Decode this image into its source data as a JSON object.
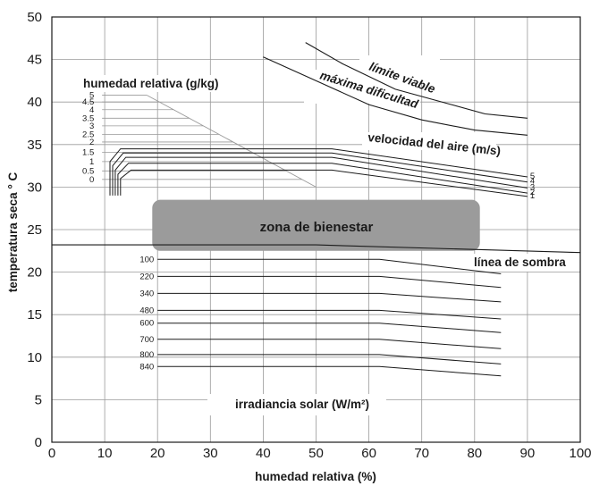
{
  "chart_data": {
    "type": "line",
    "title": "",
    "xlabel": "humedad relativa (%)",
    "ylabel": "temperatura seca ° C",
    "xlim": [
      0,
      100
    ],
    "ylim": [
      0,
      50
    ],
    "x_ticks": [
      "0",
      "10",
      "20",
      "30",
      "40",
      "50",
      "60",
      "70",
      "80",
      "90",
      "100"
    ],
    "y_ticks": [
      "0",
      "5",
      "10",
      "15",
      "20",
      "25",
      "30",
      "35",
      "40",
      "45",
      "50"
    ],
    "grid": true,
    "annotations": {
      "humedad": "humedad relativa (g/kg)",
      "limite": "límite viable",
      "maxima": "máxima dificultad",
      "velocidad": "velocidad del aire (m/s)",
      "zona": "zona de bienestar",
      "sombra": "línea de sombra",
      "irradiancia": "irradiancia solar (W/m²)"
    },
    "limit_curves": [
      {
        "name": "límite viable",
        "x": [
          48,
          55,
          65,
          75,
          82,
          90
        ],
        "y": [
          47,
          44.5,
          41.5,
          39.8,
          38.6,
          38.1
        ]
      },
      {
        "name": "máxima dificultad",
        "x": [
          40,
          50,
          60,
          70,
          80,
          90
        ],
        "y": [
          45.3,
          42.5,
          39.7,
          37.9,
          36.7,
          36.1
        ]
      }
    ],
    "humidity_lines": {
      "labels": [
        "5",
        "4.5",
        "4",
        "3.5",
        "3",
        "2.5",
        "2",
        "1.5",
        "1",
        "0.5",
        "0"
      ],
      "y": [
        40.8,
        40.0,
        39.1,
        38.1,
        37.2,
        36.2,
        35.3,
        34.1,
        33.0,
        31.9,
        30.9
      ]
    },
    "humidity_boundary": {
      "x": [
        18,
        50
      ],
      "y": [
        40.8,
        30
      ]
    },
    "air_velocity": [
      {
        "name": "5",
        "x": [
          11,
          13,
          53,
          90
        ],
        "y": [
          33,
          34.5,
          34.5,
          31.2
        ]
      },
      {
        "name": "4",
        "x": [
          11.5,
          13.5,
          53,
          90
        ],
        "y": [
          32.5,
          34,
          34,
          30.6
        ]
      },
      {
        "name": "3",
        "x": [
          12,
          14,
          53,
          90
        ],
        "y": [
          32,
          33.5,
          33.5,
          29.9
        ]
      },
      {
        "name": "2",
        "x": [
          12.5,
          14.5,
          53,
          90
        ],
        "y": [
          31.5,
          32.8,
          32.8,
          29.3
        ]
      },
      {
        "name": "1",
        "x": [
          13,
          15,
          53,
          90
        ],
        "y": [
          31,
          32,
          32,
          28.9
        ]
      }
    ],
    "shade_line": {
      "x": [
        0,
        50,
        100
      ],
      "y": [
        23.2,
        23.2,
        22.3
      ]
    },
    "comfort_zone": {
      "x": [
        19,
        81
      ],
      "y": [
        22.5,
        28.5
      ]
    },
    "irradiance": [
      {
        "name": "100",
        "x": [
          20,
          62,
          85
        ],
        "y": [
          21.5,
          21.5,
          19.8
        ]
      },
      {
        "name": "220",
        "x": [
          20,
          62,
          85
        ],
        "y": [
          19.5,
          19.5,
          18.2
        ]
      },
      {
        "name": "340",
        "x": [
          20,
          62,
          85
        ],
        "y": [
          17.5,
          17.5,
          16.5
        ]
      },
      {
        "name": "480",
        "x": [
          20,
          62,
          85
        ],
        "y": [
          15.5,
          15.5,
          14.5
        ]
      },
      {
        "name": "600",
        "x": [
          20,
          62,
          85
        ],
        "y": [
          14.0,
          14.0,
          12.9
        ]
      },
      {
        "name": "700",
        "x": [
          20,
          62,
          85
        ],
        "y": [
          12.1,
          12.1,
          11.0
        ]
      },
      {
        "name": "800",
        "x": [
          20,
          62,
          85
        ],
        "y": [
          10.3,
          10.3,
          9.2
        ]
      },
      {
        "name": "840",
        "x": [
          20,
          62,
          85
        ],
        "y": [
          8.9,
          8.9,
          7.8
        ]
      }
    ]
  }
}
